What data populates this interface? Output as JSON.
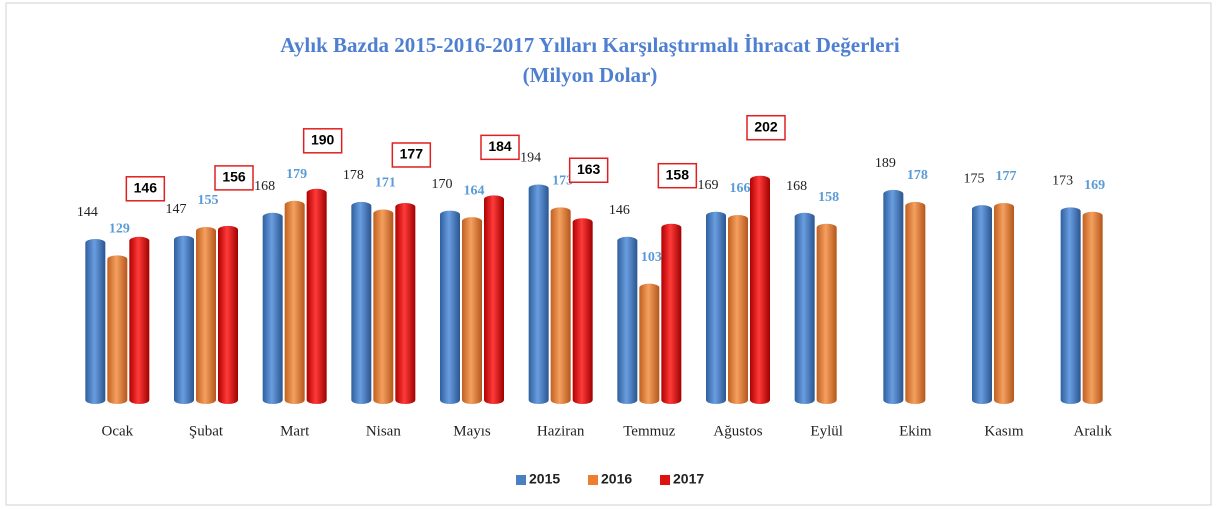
{
  "chart_data": {
    "type": "bar",
    "title": "Aylık Bazda 2015-2016-2017 Yılları Karşılaştırmalı İhracat Değerleri",
    "subtitle": "(Milyon Dolar)",
    "categories": [
      "Ocak",
      "Şubat",
      "Mart",
      "Nisan",
      "Mayıs",
      "Haziran",
      "Temmuz",
      "Ağustos",
      "Eylül",
      "Ekim",
      "Kasım",
      "Aralık"
    ],
    "series": [
      {
        "name": "2015",
        "color": "#4a7fc1",
        "values": [
          144,
          147,
          168,
          178,
          170,
          194,
          146,
          169,
          168,
          189,
          175,
          173
        ]
      },
      {
        "name": "2016",
        "color": "#ed7d31",
        "values": [
          129,
          155,
          179,
          171,
          164,
          173,
          103,
          166,
          158,
          178,
          177,
          169
        ]
      },
      {
        "name": "2017",
        "color": "#e01010",
        "values": [
          146,
          156,
          190,
          177,
          184,
          163,
          158,
          202,
          null,
          null,
          null,
          null
        ]
      }
    ],
    "ylim": [
      0,
      210
    ],
    "legend": "bottom"
  }
}
